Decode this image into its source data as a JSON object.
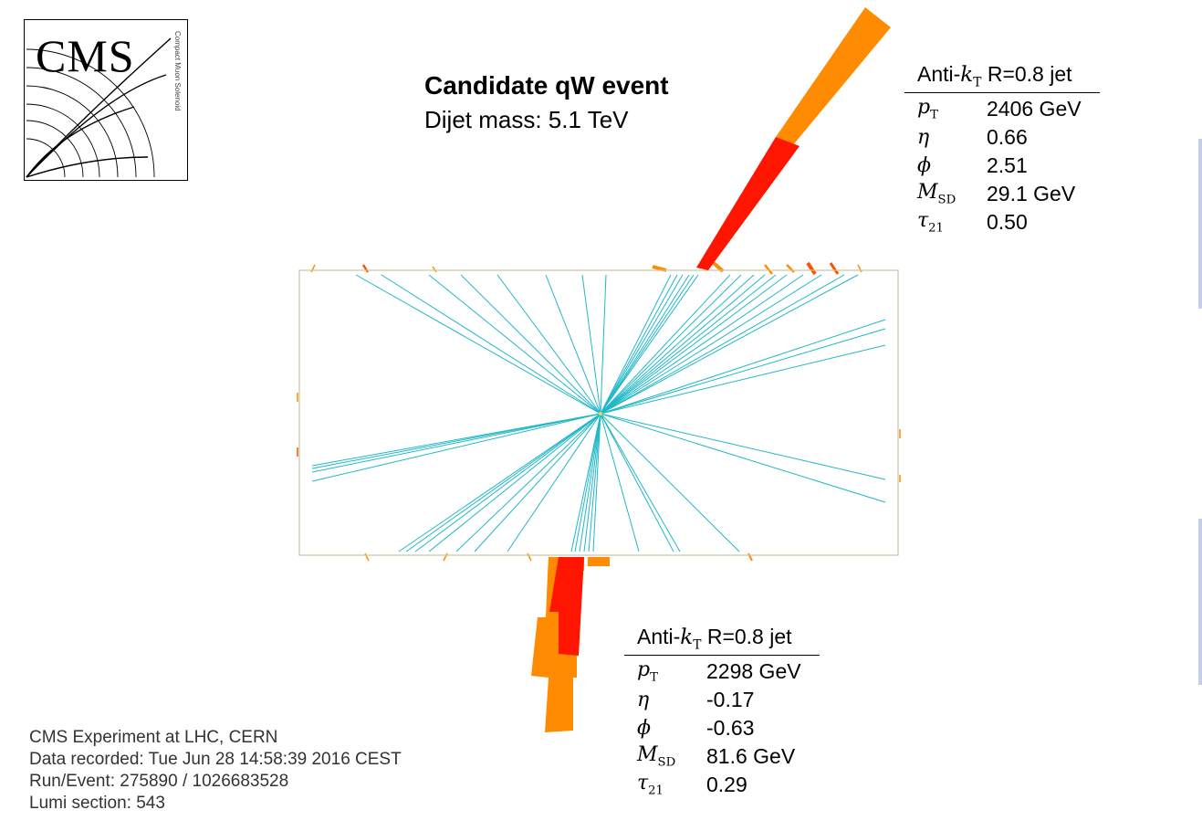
{
  "title": "Candidate qW event",
  "subtitle": "Dijet mass: 5.1 TeV",
  "logo": {
    "text": "CMS",
    "subtext": "Compact Muon Solenoid"
  },
  "jets": [
    {
      "header_prefix": "Anti-",
      "header_suffix": "R=0.8 jet",
      "rows": [
        {
          "key": "p",
          "sub": "T",
          "value": "2406 GeV"
        },
        {
          "key": "η",
          "sub": "",
          "value": "0.66"
        },
        {
          "key": "ϕ",
          "sub": "",
          "value": "2.51"
        },
        {
          "key": "M",
          "sub": "SD",
          "value": "29.1 GeV"
        },
        {
          "key": "τ",
          "sub": "21",
          "value": "0.50"
        }
      ]
    },
    {
      "header_prefix": "Anti-",
      "header_suffix": "R=0.8 jet",
      "rows": [
        {
          "key": "p",
          "sub": "T",
          "value": "2298 GeV"
        },
        {
          "key": "η",
          "sub": "",
          "value": "-0.17"
        },
        {
          "key": "ϕ",
          "sub": "",
          "value": "-0.63"
        },
        {
          "key": "M",
          "sub": "SD",
          "value": "81.6 GeV"
        },
        {
          "key": "τ",
          "sub": "21",
          "value": "0.29"
        }
      ]
    }
  ],
  "event_info": {
    "line1": "CMS Experiment at LHC, CERN",
    "line2": "Data recorded: Tue Jun 28 14:58:39 2016 CEST",
    "line3": "Run/Event: 275890 / 1026683528",
    "line4": "Lumi section: 543"
  },
  "colors": {
    "track": "#20b8c8",
    "jet_outer": "#ff8c00",
    "jet_core": "#ff1500",
    "detector_outline": "#c8c8a0",
    "logo_lines": "#000000"
  }
}
